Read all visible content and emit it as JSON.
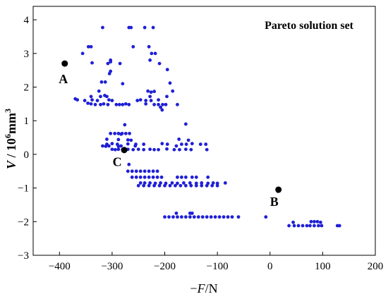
{
  "chart_data": {
    "type": "scatter",
    "title": "",
    "legend": {
      "text": "Pareto solution set",
      "placement": "top-right"
    },
    "xlabel": {
      "prefix": "−",
      "var": "F",
      "suffix": "/N"
    },
    "ylabel": {
      "var": "V",
      "mid": " / 10",
      "sup": "6",
      "unit": "mm",
      "unit_sup": "3"
    },
    "xlim": [
      -450,
      200
    ],
    "ylim": [
      -3,
      4.4
    ],
    "x_ticks": [
      -400,
      -300,
      -200,
      -100,
      0,
      100,
      200
    ],
    "x_tick_labels": [
      "−400",
      "−300",
      "−200",
      "−100",
      "0",
      "100",
      "200"
    ],
    "y_ticks": [
      -3,
      -2,
      -1,
      0,
      1,
      2,
      3,
      4
    ],
    "y_tick_labels": [
      "−3",
      "−2",
      "−1",
      "0",
      "1",
      "2",
      "3",
      "4"
    ],
    "grid": false,
    "colors": {
      "series": "#1f1fd6",
      "annotation": "#000000"
    },
    "series": [
      {
        "points": [
          [
            -318,
            3.77
          ],
          [
            -268,
            3.77
          ],
          [
            -264,
            3.77
          ],
          [
            -238,
            3.77
          ],
          [
            -222,
            3.77
          ],
          [
            -345,
            3.2
          ],
          [
            -340,
            3.2
          ],
          [
            -260,
            3.2
          ],
          [
            -230,
            3.2
          ],
          [
            -356,
            3.0
          ],
          [
            -303,
            2.8
          ],
          [
            -303,
            2.75
          ],
          [
            -225,
            3.0
          ],
          [
            -218,
            3.0
          ],
          [
            -308,
            2.7
          ],
          [
            -285,
            2.7
          ],
          [
            -338,
            2.72
          ],
          [
            -228,
            2.8
          ],
          [
            -210,
            2.7
          ],
          [
            -303,
            2.47
          ],
          [
            -195,
            2.52
          ],
          [
            -305,
            2.4
          ],
          [
            -320,
            2.15
          ],
          [
            -313,
            2.15
          ],
          [
            -280,
            2.1
          ],
          [
            -190,
            2.12
          ],
          [
            -325,
            1.88
          ],
          [
            -232,
            1.88
          ],
          [
            -226,
            1.85
          ],
          [
            -220,
            1.87
          ],
          [
            -185,
            1.88
          ],
          [
            -340,
            1.72
          ],
          [
            -322,
            1.72
          ],
          [
            -314,
            1.75
          ],
          [
            -310,
            1.72
          ],
          [
            -228,
            1.72
          ],
          [
            -196,
            1.72
          ],
          [
            -370,
            1.65
          ],
          [
            -366,
            1.62
          ],
          [
            -352,
            1.6
          ],
          [
            -338,
            1.62
          ],
          [
            -328,
            1.6
          ],
          [
            -306,
            1.62
          ],
          [
            -300,
            1.6
          ],
          [
            -252,
            1.6
          ],
          [
            -246,
            1.62
          ],
          [
            -236,
            1.6
          ],
          [
            -226,
            1.6
          ],
          [
            -212,
            1.62
          ],
          [
            -346,
            1.52
          ],
          [
            -340,
            1.5
          ],
          [
            -332,
            1.48
          ],
          [
            -322,
            1.48
          ],
          [
            -316,
            1.5
          ],
          [
            -308,
            1.48
          ],
          [
            -292,
            1.48
          ],
          [
            -286,
            1.48
          ],
          [
            -280,
            1.48
          ],
          [
            -274,
            1.5
          ],
          [
            -268,
            1.48
          ],
          [
            -236,
            1.5
          ],
          [
            -220,
            1.48
          ],
          [
            -212,
            1.48
          ],
          [
            -204,
            1.48
          ],
          [
            -198,
            1.48
          ],
          [
            -176,
            1.48
          ],
          [
            -208,
            1.4
          ],
          [
            -205,
            1.32
          ],
          [
            -303,
            0.62
          ],
          [
            -295,
            0.62
          ],
          [
            -288,
            0.62
          ],
          [
            -281,
            0.62
          ],
          [
            -274,
            0.62
          ],
          [
            -267,
            0.62
          ],
          [
            -283,
            0.6
          ],
          [
            -276,
            0.88
          ],
          [
            -160,
            0.9
          ],
          [
            -310,
            0.45
          ],
          [
            -288,
            0.44
          ],
          [
            -270,
            0.43
          ],
          [
            -264,
            0.42
          ],
          [
            -173,
            0.45
          ],
          [
            -155,
            0.42
          ],
          [
            -310,
            0.3
          ],
          [
            -300,
            0.32
          ],
          [
            -290,
            0.3
          ],
          [
            -270,
            0.31
          ],
          [
            -255,
            0.3
          ],
          [
            -240,
            0.3
          ],
          [
            -205,
            0.32
          ],
          [
            -195,
            0.3
          ],
          [
            -168,
            0.3
          ],
          [
            -159,
            0.3
          ],
          [
            -148,
            0.32
          ],
          [
            -132,
            0.3
          ],
          [
            -122,
            0.3
          ],
          [
            -318,
            0.25
          ],
          [
            -312,
            0.24
          ],
          [
            -306,
            0.25
          ],
          [
            -288,
            0.24
          ],
          [
            -283,
            0.25
          ],
          [
            -256,
            0.25
          ],
          [
            -178,
            0.25
          ],
          [
            -300,
            0.15
          ],
          [
            -294,
            0.14
          ],
          [
            -288,
            0.15
          ],
          [
            -280,
            0.14
          ],
          [
            -270,
            0.15
          ],
          [
            -260,
            0.14
          ],
          [
            -250,
            0.15
          ],
          [
            -240,
            0.14
          ],
          [
            -228,
            0.15
          ],
          [
            -220,
            0.14
          ],
          [
            -212,
            0.14
          ],
          [
            -196,
            0.16
          ],
          [
            -182,
            0.14
          ],
          [
            -172,
            0.14
          ],
          [
            -160,
            0.15
          ],
          [
            -150,
            0.14
          ],
          [
            -120,
            0.14
          ],
          [
            -268,
            -0.3
          ],
          [
            -270,
            -0.5
          ],
          [
            -262,
            -0.5
          ],
          [
            -254,
            -0.5
          ],
          [
            -246,
            -0.5
          ],
          [
            -238,
            -0.5
          ],
          [
            -230,
            -0.5
          ],
          [
            -222,
            -0.5
          ],
          [
            -214,
            -0.5
          ],
          [
            -262,
            -0.68
          ],
          [
            -254,
            -0.68
          ],
          [
            -246,
            -0.68
          ],
          [
            -238,
            -0.68
          ],
          [
            -230,
            -0.68
          ],
          [
            -222,
            -0.68
          ],
          [
            -214,
            -0.68
          ],
          [
            -206,
            -0.68
          ],
          [
            -176,
            -0.68
          ],
          [
            -168,
            -0.68
          ],
          [
            -160,
            -0.68
          ],
          [
            -148,
            -0.68
          ],
          [
            -140,
            -0.68
          ],
          [
            -118,
            -0.68
          ],
          [
            -246,
            -0.85
          ],
          [
            -238,
            -0.85
          ],
          [
            -228,
            -0.85
          ],
          [
            -218,
            -0.86
          ],
          [
            -208,
            -0.85
          ],
          [
            -198,
            -0.86
          ],
          [
            -186,
            -0.85
          ],
          [
            -176,
            -0.86
          ],
          [
            -164,
            -0.85
          ],
          [
            -152,
            -0.85
          ],
          [
            -140,
            -0.86
          ],
          [
            -130,
            -0.85
          ],
          [
            -118,
            -0.86
          ],
          [
            -108,
            -0.85
          ],
          [
            -100,
            -0.86
          ],
          [
            -85,
            -0.85
          ],
          [
            -250,
            -0.93
          ],
          [
            -240,
            -0.93
          ],
          [
            -230,
            -0.93
          ],
          [
            -220,
            -0.93
          ],
          [
            -210,
            -0.93
          ],
          [
            -200,
            -0.93
          ],
          [
            -190,
            -0.93
          ],
          [
            -180,
            -0.93
          ],
          [
            -170,
            -0.93
          ],
          [
            -160,
            -0.93
          ],
          [
            -150,
            -0.93
          ],
          [
            -140,
            -0.93
          ],
          [
            -130,
            -0.93
          ],
          [
            -120,
            -0.93
          ],
          [
            -110,
            -0.93
          ],
          [
            -100,
            -0.93
          ],
          [
            -200,
            -1.86
          ],
          [
            -192,
            -1.86
          ],
          [
            -184,
            -1.86
          ],
          [
            -176,
            -1.86
          ],
          [
            -168,
            -1.86
          ],
          [
            -160,
            -1.86
          ],
          [
            -152,
            -1.86
          ],
          [
            -144,
            -1.86
          ],
          [
            -136,
            -1.86
          ],
          [
            -128,
            -1.86
          ],
          [
            -120,
            -1.86
          ],
          [
            -112,
            -1.86
          ],
          [
            -104,
            -1.86
          ],
          [
            -96,
            -1.86
          ],
          [
            -88,
            -1.86
          ],
          [
            -80,
            -1.86
          ],
          [
            -72,
            -1.86
          ],
          [
            -60,
            -1.86
          ],
          [
            -8,
            -1.86
          ],
          [
            -178,
            -1.75
          ],
          [
            -152,
            -1.75
          ],
          [
            -148,
            -1.75
          ],
          [
            15,
            -1.1
          ],
          [
            36,
            -2.12
          ],
          [
            46,
            -2.12
          ],
          [
            54,
            -2.12
          ],
          [
            62,
            -2.12
          ],
          [
            70,
            -2.12
          ],
          [
            76,
            -2.12
          ],
          [
            84,
            -2.12
          ],
          [
            92,
            -2.12
          ],
          [
            98,
            -2.12
          ],
          [
            128,
            -2.12
          ],
          [
            132,
            -2.12
          ],
          [
            78,
            -2.0
          ],
          [
            84,
            -2.0
          ],
          [
            90,
            -2.0
          ],
          [
            96,
            -2.02
          ],
          [
            44,
            -2.02
          ]
        ]
      }
    ],
    "annotations": [
      {
        "label": "A",
        "x": -390,
        "y": 2.7
      },
      {
        "label": "C",
        "x": -277,
        "y": 0.13
      },
      {
        "label": "B",
        "x": 16,
        "y": -1.05
      }
    ]
  }
}
